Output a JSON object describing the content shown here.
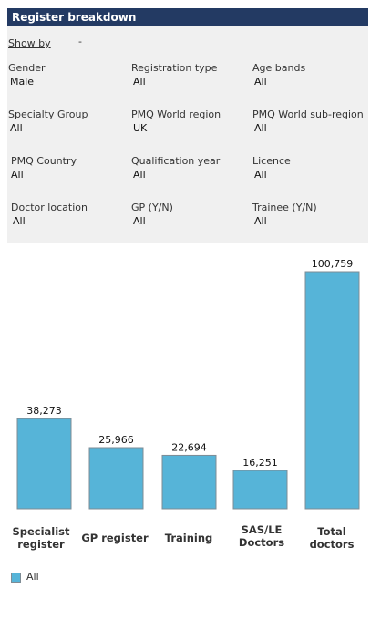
{
  "header": {
    "title": "Register breakdown"
  },
  "show_by": {
    "label": "Show by",
    "value": "-"
  },
  "filters": [
    {
      "label": "Gender",
      "value": "Male"
    },
    {
      "label": "Registration type",
      "value": "All"
    },
    {
      "label": "Age bands",
      "value": "All"
    },
    {
      "label": "Specialty Group",
      "value": "All"
    },
    {
      "label": "PMQ World region",
      "value": "UK"
    },
    {
      "label": "PMQ World sub-region",
      "value": "All"
    },
    {
      "label": "PMQ Country",
      "value": "All"
    },
    {
      "label": "Qualification year",
      "value": "All"
    },
    {
      "label": "Licence",
      "value": "All"
    },
    {
      "label": "Doctor location",
      "value": "All"
    },
    {
      "label": "GP (Y/N)",
      "value": "All"
    },
    {
      "label": "Trainee (Y/N)",
      "value": "All"
    }
  ],
  "chart_data": {
    "type": "bar",
    "categories": [
      "Specialist register",
      "GP register",
      "Training",
      "SAS/LE Doctors",
      "Total doctors"
    ],
    "series": [
      {
        "name": "All",
        "values": [
          38273,
          25966,
          22694,
          16251,
          100759
        ],
        "color": "#56b4d8"
      }
    ],
    "data_labels": [
      "38,273",
      "25,966",
      "22,694",
      "16,251",
      "100,759"
    ],
    "ylim": [
      0,
      100759
    ],
    "grid": false,
    "legend": "bottom-left"
  },
  "legend": {
    "label": "All"
  }
}
